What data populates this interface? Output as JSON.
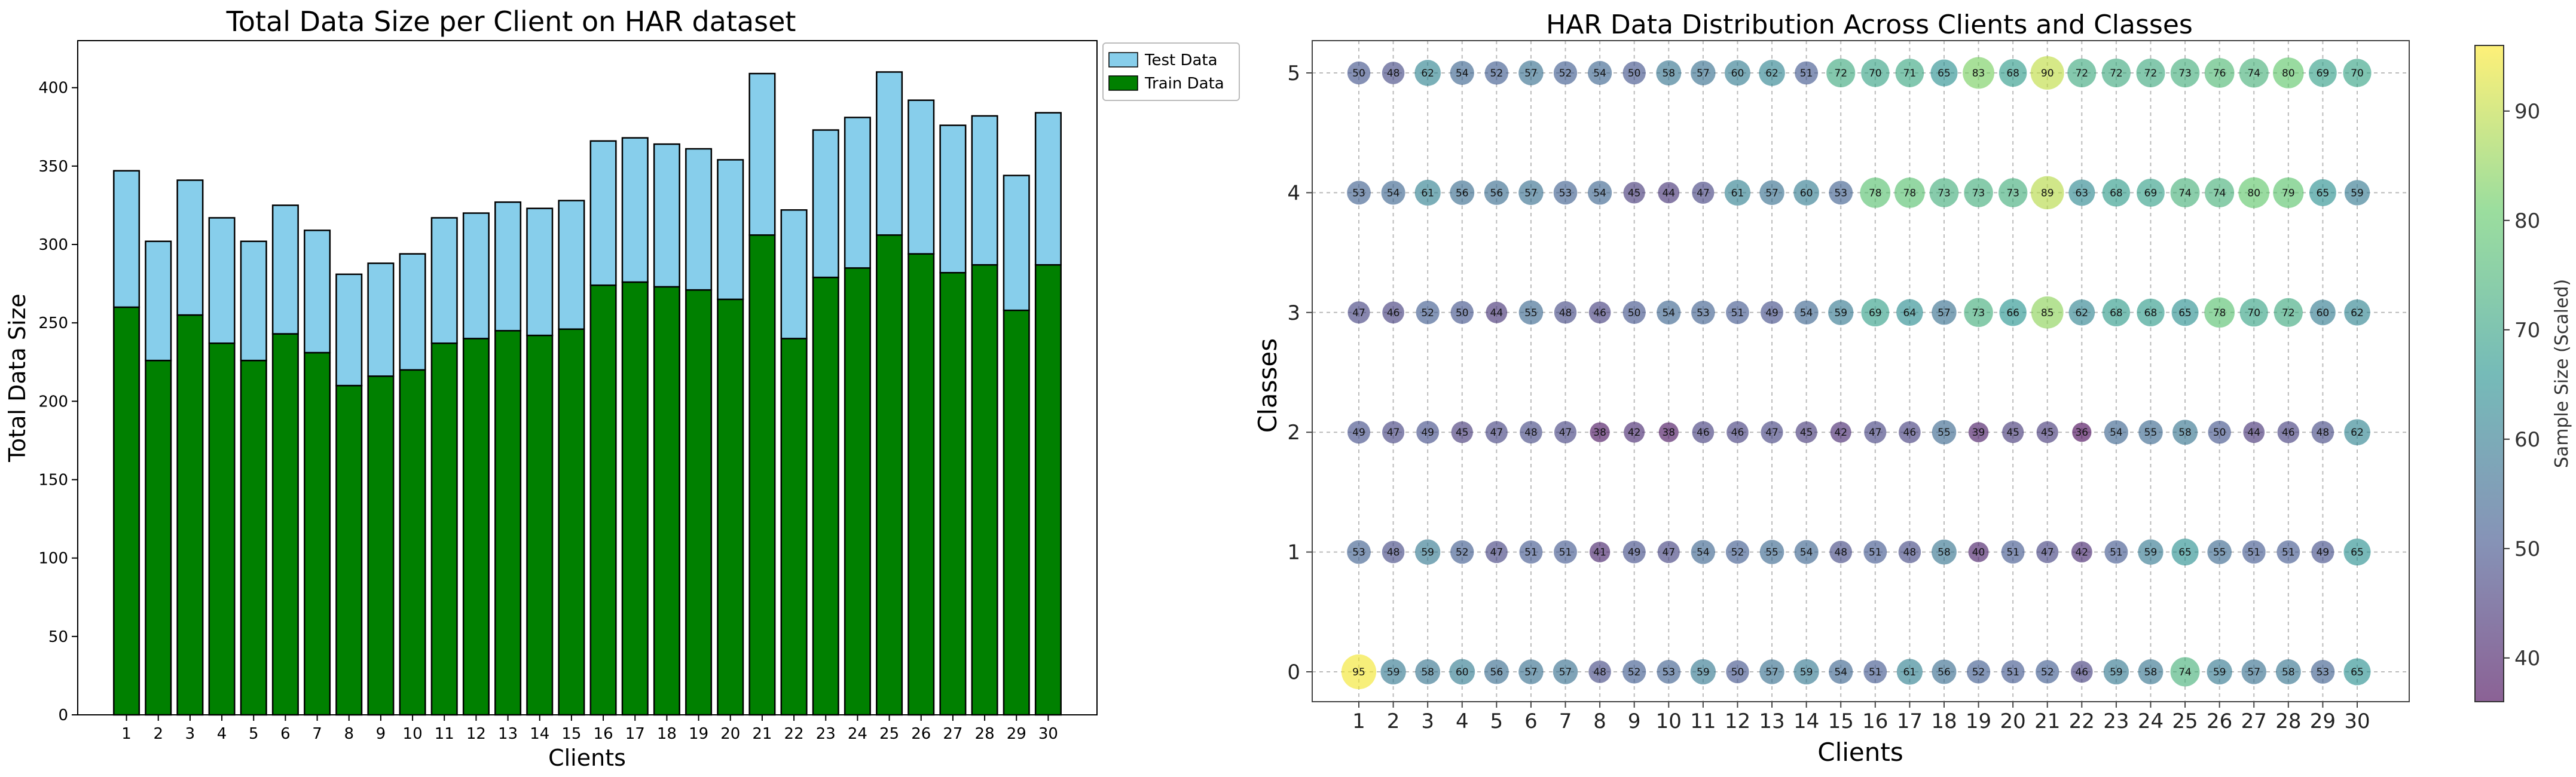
{
  "chart_data": [
    {
      "type": "bar",
      "stacked": true,
      "title": "Total Data Size per Client on HAR dataset",
      "xlabel": "Clients",
      "ylabel": "Total Data Size",
      "categories": [
        "1",
        "2",
        "3",
        "4",
        "5",
        "6",
        "7",
        "8",
        "9",
        "10",
        "11",
        "12",
        "13",
        "14",
        "15",
        "16",
        "17",
        "18",
        "19",
        "20",
        "21",
        "22",
        "23",
        "24",
        "25",
        "26",
        "27",
        "28",
        "29",
        "30"
      ],
      "series": [
        {
          "name": "Train Data",
          "color": "#008000",
          "values": [
            260,
            226,
            255,
            237,
            226,
            243,
            231,
            210,
            216,
            220,
            237,
            240,
            245,
            242,
            246,
            274,
            276,
            273,
            271,
            265,
            306,
            240,
            279,
            285,
            306,
            294,
            282,
            287,
            258,
            287
          ]
        },
        {
          "name": "Test Data",
          "color": "#87ceeb",
          "values": [
            87,
            76,
            86,
            80,
            76,
            82,
            78,
            71,
            72,
            74,
            80,
            80,
            82,
            81,
            82,
            92,
            92,
            91,
            90,
            89,
            103,
            82,
            94,
            96,
            104,
            98,
            94,
            95,
            86,
            97
          ]
        }
      ],
      "ylim": [
        0,
        430
      ],
      "yticks": [
        0,
        50,
        100,
        150,
        200,
        250,
        300,
        350,
        400
      ],
      "legend": "upper-right-outside",
      "grid": false
    },
    {
      "type": "scatter",
      "title": "HAR Data Distribution Across Clients and Classes",
      "xlabel": "Clients",
      "ylabel": "Classes",
      "x": [
        "1",
        "2",
        "3",
        "4",
        "5",
        "6",
        "7",
        "8",
        "9",
        "10",
        "11",
        "12",
        "13",
        "14",
        "15",
        "16",
        "17",
        "18",
        "19",
        "20",
        "21",
        "22",
        "23",
        "24",
        "25",
        "26",
        "27",
        "28",
        "29",
        "30"
      ],
      "y": [
        "0",
        "1",
        "2",
        "3",
        "4",
        "5"
      ],
      "values": [
        [
          95,
          59,
          58,
          60,
          56,
          57,
          57,
          48,
          52,
          53,
          59,
          50,
          57,
          59,
          54,
          51,
          61,
          56,
          52,
          51,
          52,
          46,
          59,
          58,
          74,
          59,
          57,
          58,
          53,
          65
        ],
        [
          53,
          48,
          59,
          52,
          47,
          51,
          51,
          41,
          49,
          47,
          54,
          52,
          55,
          54,
          48,
          51,
          48,
          58,
          40,
          51,
          47,
          42,
          51,
          59,
          65,
          55,
          51,
          51,
          49,
          65
        ],
        [
          49,
          47,
          49,
          45,
          47,
          48,
          47,
          38,
          42,
          38,
          46,
          46,
          47,
          45,
          42,
          47,
          46,
          55,
          39,
          45,
          45,
          36,
          54,
          55,
          58,
          50,
          44,
          46,
          48,
          62
        ],
        [
          47,
          46,
          52,
          50,
          44,
          55,
          48,
          46,
          50,
          54,
          53,
          51,
          49,
          54,
          59,
          69,
          64,
          57,
          73,
          66,
          85,
          62,
          68,
          68,
          65,
          78,
          70,
          72,
          60,
          62
        ],
        [
          53,
          54,
          61,
          56,
          56,
          57,
          53,
          54,
          45,
          44,
          47,
          61,
          57,
          60,
          53,
          78,
          78,
          73,
          73,
          73,
          89,
          63,
          68,
          69,
          74,
          74,
          80,
          79,
          65,
          59
        ],
        [
          50,
          48,
          62,
          54,
          52,
          57,
          52,
          54,
          50,
          58,
          57,
          60,
          62,
          51,
          72,
          70,
          71,
          65,
          83,
          68,
          90,
          72,
          72,
          72,
          73,
          76,
          74,
          80,
          69,
          70
        ]
      ],
      "colorbar": {
        "label": "Sample Size (Scaled)",
        "range": [
          36,
          96
        ],
        "ticks": [
          40,
          50,
          60,
          70,
          80,
          90
        ],
        "colormap": "viridis"
      },
      "grid": true
    }
  ]
}
